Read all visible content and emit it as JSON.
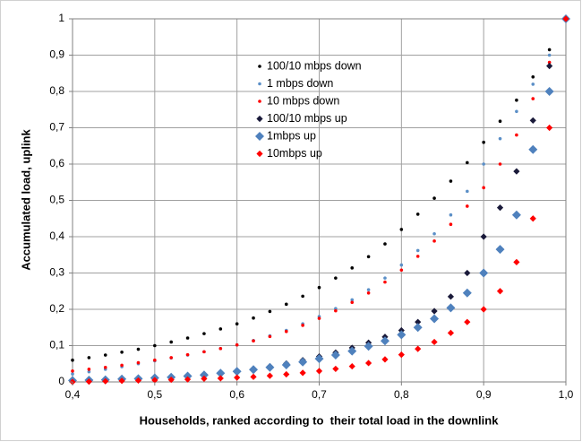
{
  "chart_data": {
    "type": "scatter",
    "x_label": "Households, ranked according to  their total load in the downlink",
    "y_label": "Accumulated load, uplink",
    "xlim": [
      0.4,
      1.0
    ],
    "ylim": [
      0,
      1
    ],
    "xticks": [
      {
        "value": 0.4,
        "label": "0,4"
      },
      {
        "value": 0.5,
        "label": "0,5"
      },
      {
        "value": 0.6,
        "label": "0,6"
      },
      {
        "value": 0.7,
        "label": "0,7"
      },
      {
        "value": 0.8,
        "label": "0,8"
      },
      {
        "value": 0.9,
        "label": "0,9"
      },
      {
        "value": 1.0,
        "label": "1,0"
      }
    ],
    "yticks": [
      0,
      {
        "value": 0.1,
        "label": "0,1"
      },
      {
        "value": 0.2,
        "label": "0,2"
      },
      {
        "value": 0.3,
        "label": "0,3"
      },
      {
        "value": 0.4,
        "label": "0,4"
      },
      {
        "value": 0.5,
        "label": "0,5"
      },
      {
        "value": 0.6,
        "label": "0,6"
      },
      {
        "value": 0.7,
        "label": "0,7"
      },
      {
        "value": 0.8,
        "label": "0,8"
      },
      {
        "value": 0.9,
        "label": "0,9"
      },
      1
    ],
    "grid": true,
    "legend": "top-center",
    "x": [
      0.4,
      0.42,
      0.44,
      0.46,
      0.48,
      0.5,
      0.52,
      0.54,
      0.56,
      0.58,
      0.6,
      0.62,
      0.64,
      0.66,
      0.68,
      0.7,
      0.72,
      0.74,
      0.76,
      0.78,
      0.8,
      0.82,
      0.84,
      0.86,
      0.88,
      0.9,
      0.92,
      0.94,
      0.96,
      0.98,
      1.0
    ],
    "series": [
      {
        "name": "100/10 mbps down",
        "color": "#000000",
        "marker": "dot",
        "values": [
          0.06,
          0.067,
          0.074,
          0.082,
          0.09,
          0.1,
          0.11,
          0.121,
          0.133,
          0.146,
          0.16,
          0.176,
          0.194,
          0.214,
          0.236,
          0.26,
          0.286,
          0.314,
          0.345,
          0.38,
          0.42,
          0.462,
          0.506,
          0.553,
          0.604,
          0.66,
          0.718,
          0.776,
          0.84,
          0.915,
          1.0
        ]
      },
      {
        "name": "1 mbps down",
        "color": "#5b8fc7",
        "marker": "dot",
        "values": [
          0.022,
          0.028,
          0.035,
          0.042,
          0.05,
          0.058,
          0.066,
          0.074,
          0.083,
          0.092,
          0.102,
          0.114,
          0.127,
          0.142,
          0.16,
          0.18,
          0.202,
          0.226,
          0.254,
          0.286,
          0.322,
          0.362,
          0.408,
          0.46,
          0.525,
          0.6,
          0.67,
          0.745,
          0.82,
          0.9,
          1.0
        ]
      },
      {
        "name": "10 mbps down",
        "color": "#ff0000",
        "marker": "dot",
        "values": [
          0.03,
          0.035,
          0.04,
          0.046,
          0.053,
          0.06,
          0.067,
          0.075,
          0.083,
          0.092,
          0.102,
          0.113,
          0.125,
          0.139,
          0.156,
          0.175,
          0.196,
          0.219,
          0.245,
          0.275,
          0.308,
          0.346,
          0.388,
          0.434,
          0.484,
          0.535,
          0.6,
          0.68,
          0.78,
          0.88,
          1.0
        ]
      },
      {
        "name": "100/10 mbps up",
        "color": "#1a1a3a",
        "marker": "small-diamond",
        "values": [
          0.005,
          0.006,
          0.008,
          0.009,
          0.011,
          0.013,
          0.015,
          0.018,
          0.021,
          0.025,
          0.03,
          0.036,
          0.043,
          0.051,
          0.06,
          0.07,
          0.081,
          0.094,
          0.108,
          0.124,
          0.142,
          0.165,
          0.195,
          0.235,
          0.3,
          0.4,
          0.48,
          0.58,
          0.72,
          0.87,
          1.0
        ]
      },
      {
        "name": "1mbps up",
        "color": "#4f81bd",
        "marker": "diamond",
        "values": [
          0.004,
          0.005,
          0.006,
          0.008,
          0.009,
          0.011,
          0.013,
          0.016,
          0.019,
          0.024,
          0.029,
          0.034,
          0.04,
          0.047,
          0.055,
          0.064,
          0.074,
          0.085,
          0.098,
          0.113,
          0.13,
          0.15,
          0.174,
          0.204,
          0.245,
          0.3,
          0.365,
          0.46,
          0.64,
          0.8,
          1.0
        ]
      },
      {
        "name": "10mbps up",
        "color": "#ff0000",
        "marker": "small-diamond",
        "values": [
          0.0,
          0.001,
          0.002,
          0.003,
          0.004,
          0.005,
          0.006,
          0.007,
          0.009,
          0.01,
          0.012,
          0.014,
          0.017,
          0.021,
          0.025,
          0.03,
          0.036,
          0.043,
          0.052,
          0.062,
          0.075,
          0.091,
          0.11,
          0.135,
          0.165,
          0.2,
          0.25,
          0.33,
          0.45,
          0.7,
          1.0
        ]
      }
    ]
  }
}
